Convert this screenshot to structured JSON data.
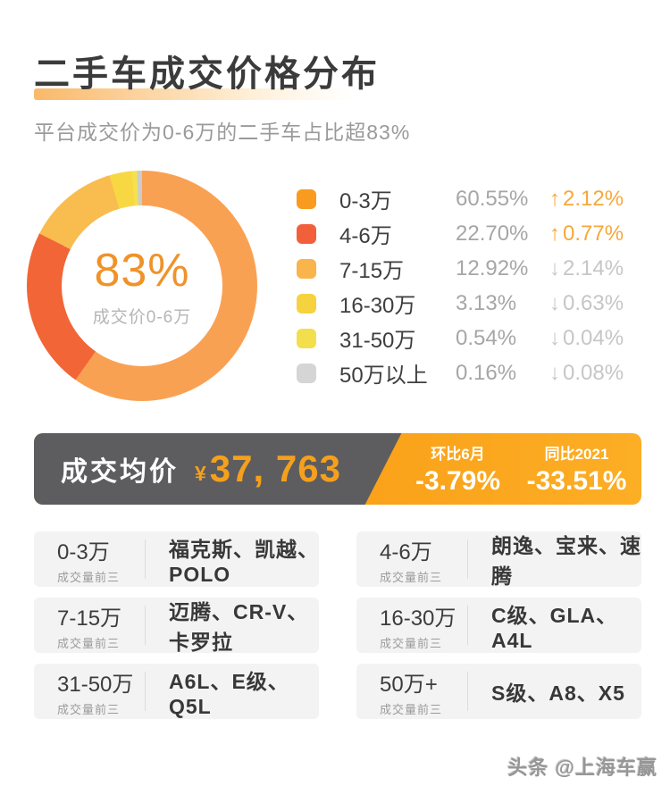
{
  "page": {
    "title": "二手车成交价格分布",
    "subtitle": "平台成交价为0-6万的二手车占比超83%",
    "watermark": "头条 @上海车赢"
  },
  "chart_data": {
    "type": "pie",
    "title": "二手车成交价格分布",
    "legend_position": "right",
    "donut_center": {
      "value": "83%",
      "label": "成交价0-6万"
    },
    "segments": [
      {
        "label": "0-3万",
        "share_pct": 60.55,
        "share_text": "60.55%",
        "change_dir": "up",
        "change_arrow": "↑",
        "change_text": "2.12%",
        "change_color": "#f5a83b",
        "color": "#f89b1f",
        "ring_color": "#f9a153"
      },
      {
        "label": "4-6万",
        "share_pct": 22.7,
        "share_text": "22.70%",
        "change_dir": "up",
        "change_arrow": "↑",
        "change_text": "0.77%",
        "change_color": "#f5a83b",
        "color": "#f1603a",
        "ring_color": "#f26537"
      },
      {
        "label": "7-15万",
        "share_pct": 12.92,
        "share_text": "12.92%",
        "change_dir": "down",
        "change_arrow": "↓",
        "change_text": "2.14%",
        "change_color": "#c6c6c6",
        "color": "#f9b44c",
        "ring_color": "#f9bc4f"
      },
      {
        "label": "16-30万",
        "share_pct": 3.13,
        "share_text": "3.13%",
        "change_dir": "down",
        "change_arrow": "↓",
        "change_text": "0.63%",
        "change_color": "#c6c6c6",
        "color": "#f6d23e",
        "ring_color": "#f7d843"
      },
      {
        "label": "31-50万",
        "share_pct": 0.54,
        "share_text": "0.54%",
        "change_dir": "down",
        "change_arrow": "↓",
        "change_text": "0.04%",
        "change_color": "#c6c6c6",
        "color": "#f2df4b",
        "ring_color": "#f5e14e"
      },
      {
        "label": "50万以上",
        "share_pct": 0.16,
        "share_text": "0.16%",
        "change_dir": "down",
        "change_arrow": "↓",
        "change_text": "0.08%",
        "change_color": "#c6c6c6",
        "color": "#d5d5d5",
        "ring_color": "#cccccc"
      }
    ]
  },
  "banner": {
    "label": "成交均价",
    "currency": "¥",
    "value": "37, 763",
    "mom": {
      "label": "环比6月",
      "value": "-3.79%"
    },
    "yoy": {
      "label": "同比2021",
      "value": "-33.51%"
    }
  },
  "top_sellers": {
    "note_label": "成交量前三",
    "cards": [
      {
        "range": "0-3万",
        "models": "福克斯、凯越、POLO"
      },
      {
        "range": "4-6万",
        "models": "朗逸、宝来、速腾"
      },
      {
        "range": "7-15万",
        "models": "迈腾、CR-V、卡罗拉"
      },
      {
        "range": "16-30万",
        "models": "C级、GLA、A4L"
      },
      {
        "range": "31-50万",
        "models": "A6L、E级、Q5L"
      },
      {
        "range": "50万+",
        "models": "S级、A8、X5"
      }
    ]
  },
  "colors": {
    "banner_dark": "#5d5d60",
    "banner_orange": "#f7930e",
    "accent_orange": "#ef9329",
    "title_text": "#3b3b3b"
  }
}
